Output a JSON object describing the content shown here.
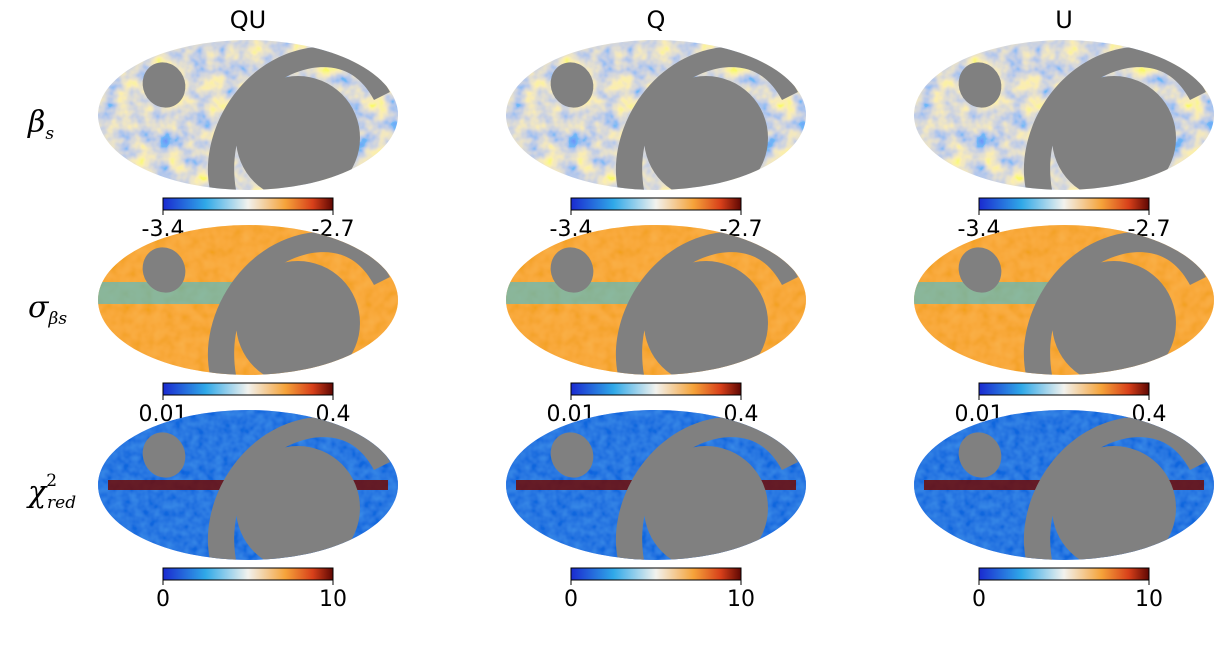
{
  "chart_data": {
    "type": "heatmap",
    "columns": [
      "QU",
      "Q",
      "U"
    ],
    "rows": [
      {
        "label": "β",
        "subscript": "s",
        "superscript": "",
        "colorbar_min_label": "-3.4",
        "colorbar_max_label": "-2.7",
        "colorbar_range": [
          -3.4,
          -2.7
        ],
        "colormap": "blue-white-red"
      },
      {
        "label": "σ",
        "subscript": "βs",
        "superscript": "",
        "colorbar_min_label": "0.01",
        "colorbar_max_label": "0.4",
        "colorbar_range": [
          0.01,
          0.4
        ],
        "colormap": "blue-white-red"
      },
      {
        "label": "χ",
        "subscript": "red",
        "superscript": "2",
        "colorbar_min_label": "0",
        "colorbar_max_label": "10",
        "colorbar_range": [
          0,
          10
        ],
        "colormap": "blue-white-red"
      }
    ],
    "projection": "mollweide",
    "mask_color": "#808080",
    "colors": {
      "low": "#1a3bd6",
      "mid_low": "#2fc0e6",
      "mid": "#f4f4f0",
      "mid_high": "#f59a2a",
      "high": "#6e0a05"
    }
  }
}
